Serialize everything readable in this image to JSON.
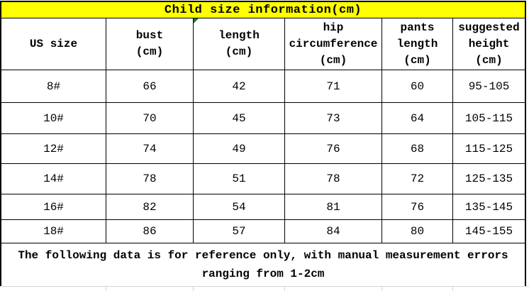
{
  "table": {
    "title": "Child size information(cm)",
    "columns": [
      "US size",
      "bust\n(cm)",
      "length\n(cm)",
      "hip\ncircumference\n(cm)",
      "pants\nlength\n(cm)",
      "suggested\nheight\n(cm)"
    ],
    "rows": [
      [
        "8#",
        "66",
        "42",
        "71",
        "60",
        "95-105"
      ],
      [
        "10#",
        "70",
        "45",
        "73",
        "64",
        "105-115"
      ],
      [
        "12#",
        "74",
        "49",
        "76",
        "68",
        "115-125"
      ],
      [
        "14#",
        "78",
        "51",
        "78",
        "72",
        "125-135"
      ],
      [
        "16#",
        "82",
        "54",
        "81",
        "76",
        "135-145"
      ],
      [
        "18#",
        "86",
        "57",
        "84",
        "80",
        "145-155"
      ]
    ],
    "footer_note": "The following data is for reference only, with manual measurement errors ranging from 1-2cm"
  },
  "colors": {
    "title_bg": "#FFFF00",
    "border": "#000000",
    "text": "#000000",
    "corner_marker_green": "#1E7C1E",
    "faint_gridline": "#D4D4D4"
  }
}
